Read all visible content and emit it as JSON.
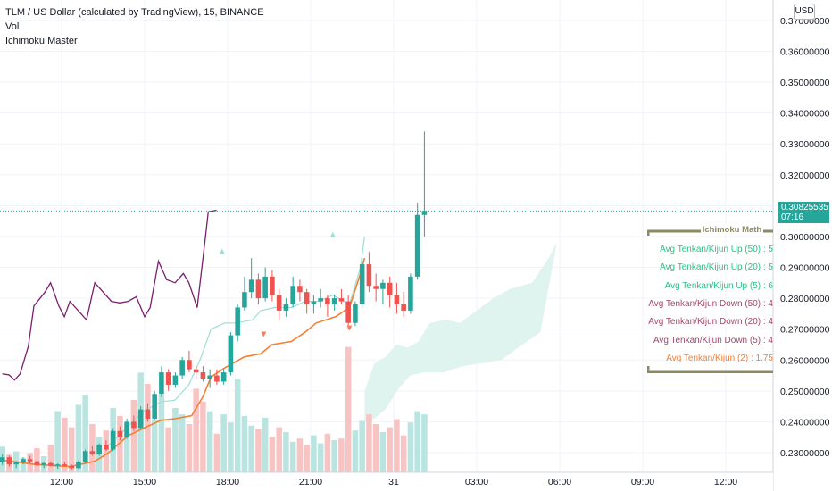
{
  "legend": {
    "title": "TLM / US Dollar (calculated by TradingView), 15, BINANCE",
    "vol": "Vol",
    "indicator": "Ichimoku Master"
  },
  "currency": "USD",
  "last_price": {
    "value": "0.30825535",
    "countdown": "07:16"
  },
  "panel": {
    "title": "Ichimoku Math",
    "rows": [
      {
        "text": "Avg Tenkan/Kijun Up (50) : 5",
        "color": "#26c485"
      },
      {
        "text": "Avg Tenkan/Kijun Up (20) : 5",
        "color": "#26c485"
      },
      {
        "text": "Avg Tenkan/Kijun Up (5) : 6",
        "color": "#26c485"
      },
      {
        "text": "Avg Tenkan/Kijun Down (50) : 4",
        "color": "#9c4a6a"
      },
      {
        "text": "Avg Tenkan/Kijun Down (20) : 4",
        "color": "#9c4a6a"
      },
      {
        "text": "Avg Tenkan/Kijun Down (5) : 4",
        "color": "#9c4a6a"
      },
      {
        "text": "Avg Tenkan/Kijun (2) : 1.75",
        "color": "#f57f32"
      }
    ]
  },
  "colors": {
    "up": "#26a69a",
    "down": "#ef5350",
    "kijun": "#f57f32",
    "tenkan": "#9fded6",
    "oscillator": "#7b1f6e",
    "cloud": "#dff3ef"
  },
  "chart_data": {
    "type": "candlestick",
    "y_ticks": [
      "0.23000000",
      "0.24000000",
      "0.25000000",
      "0.26000000",
      "0.27000000",
      "0.28000000",
      "0.29000000",
      "0.30000000",
      "0.31000000",
      "0.32000000",
      "0.33000000",
      "0.34000000",
      "0.35000000",
      "0.36000000",
      "0.37000000"
    ],
    "ylim": [
      0.222,
      0.374
    ],
    "x_ticks": [
      "12:00",
      "15:00",
      "18:00",
      "21:00",
      "31",
      "03:00",
      "06:00",
      "09:00",
      "12:00"
    ],
    "x_tick_hours": [
      12,
      15,
      18,
      21,
      24,
      27,
      30,
      33,
      36
    ],
    "start_hour": 9.86,
    "bar_hours": 0.25,
    "candles": [
      [
        0.2271,
        0.2295,
        0.226,
        0.2285
      ],
      [
        0.2285,
        0.229,
        0.2255,
        0.2262
      ],
      [
        0.2262,
        0.2272,
        0.225,
        0.2268
      ],
      [
        0.2268,
        0.2285,
        0.2262,
        0.2279
      ],
      [
        0.2279,
        0.229,
        0.2265,
        0.2272
      ],
      [
        0.2272,
        0.2278,
        0.2255,
        0.226
      ],
      [
        0.226,
        0.227,
        0.225,
        0.2266
      ],
      [
        0.2266,
        0.2272,
        0.2255,
        0.2258
      ],
      [
        0.2258,
        0.2265,
        0.2248,
        0.2262
      ],
      [
        0.2262,
        0.227,
        0.2255,
        0.2257
      ],
      [
        0.2257,
        0.2262,
        0.2245,
        0.225
      ],
      [
        0.225,
        0.2275,
        0.2248,
        0.227
      ],
      [
        0.227,
        0.231,
        0.2265,
        0.2305
      ],
      [
        0.2305,
        0.232,
        0.229,
        0.2295
      ],
      [
        0.2295,
        0.233,
        0.229,
        0.2325
      ],
      [
        0.2325,
        0.234,
        0.2305,
        0.231
      ],
      [
        0.231,
        0.238,
        0.2305,
        0.237
      ],
      [
        0.237,
        0.2385,
        0.234,
        0.235
      ],
      [
        0.235,
        0.241,
        0.2345,
        0.24
      ],
      [
        0.24,
        0.242,
        0.237,
        0.238
      ],
      [
        0.238,
        0.245,
        0.2375,
        0.244
      ],
      [
        0.244,
        0.246,
        0.24,
        0.241
      ],
      [
        0.241,
        0.25,
        0.2405,
        0.249
      ],
      [
        0.249,
        0.258,
        0.248,
        0.256
      ],
      [
        0.256,
        0.257,
        0.25,
        0.252
      ],
      [
        0.252,
        0.256,
        0.251,
        0.255
      ],
      [
        0.255,
        0.261,
        0.254,
        0.26
      ],
      [
        0.26,
        0.263,
        0.256,
        0.257
      ],
      [
        0.257,
        0.258,
        0.254,
        0.256
      ],
      [
        0.256,
        0.258,
        0.253,
        0.254
      ],
      [
        0.254,
        0.257,
        0.251,
        0.255
      ],
      [
        0.255,
        0.257,
        0.252,
        0.253
      ],
      [
        0.253,
        0.257,
        0.252,
        0.256
      ],
      [
        0.256,
        0.269,
        0.255,
        0.268
      ],
      [
        0.268,
        0.278,
        0.266,
        0.277
      ],
      [
        0.277,
        0.287,
        0.276,
        0.282
      ],
      [
        0.282,
        0.293,
        0.28,
        0.286
      ],
      [
        0.286,
        0.288,
        0.278,
        0.28
      ],
      [
        0.28,
        0.29,
        0.279,
        0.287
      ],
      [
        0.287,
        0.289,
        0.279,
        0.281
      ],
      [
        0.281,
        0.283,
        0.273,
        0.276
      ],
      [
        0.276,
        0.28,
        0.274,
        0.278
      ],
      [
        0.278,
        0.287,
        0.277,
        0.284
      ],
      [
        0.284,
        0.286,
        0.279,
        0.282
      ],
      [
        0.282,
        0.283,
        0.275,
        0.278
      ],
      [
        0.278,
        0.281,
        0.275,
        0.279
      ],
      [
        0.279,
        0.283,
        0.277,
        0.28
      ],
      [
        0.28,
        0.281,
        0.274,
        0.278
      ],
      [
        0.278,
        0.281,
        0.276,
        0.28
      ],
      [
        0.28,
        0.283,
        0.278,
        0.279
      ],
      [
        0.279,
        0.281,
        0.27,
        0.272
      ],
      [
        0.272,
        0.279,
        0.271,
        0.278
      ],
      [
        0.278,
        0.293,
        0.277,
        0.291
      ],
      [
        0.291,
        0.295,
        0.282,
        0.284
      ],
      [
        0.284,
        0.288,
        0.279,
        0.283
      ],
      [
        0.283,
        0.286,
        0.278,
        0.285
      ],
      [
        0.285,
        0.287,
        0.277,
        0.281
      ],
      [
        0.281,
        0.285,
        0.275,
        0.278
      ],
      [
        0.278,
        0.282,
        0.274,
        0.276
      ],
      [
        0.276,
        0.288,
        0.275,
        0.287
      ],
      [
        0.287,
        0.311,
        0.286,
        0.307
      ],
      [
        0.307,
        0.334,
        0.3,
        0.3083
      ]
    ],
    "volume_pct": [
      0.16,
      0.11,
      0.13,
      0.09,
      0.12,
      0.15,
      0.1,
      0.17,
      0.38,
      0.34,
      0.28,
      0.42,
      0.48,
      0.3,
      0.22,
      0.26,
      0.4,
      0.35,
      0.3,
      0.45,
      0.62,
      0.55,
      0.33,
      0.48,
      0.28,
      0.4,
      0.36,
      0.3,
      0.52,
      0.44,
      0.38,
      0.24,
      0.36,
      0.31,
      0.58,
      0.35,
      0.29,
      0.27,
      0.34,
      0.22,
      0.28,
      0.25,
      0.19,
      0.21,
      0.17,
      0.23,
      0.18,
      0.24,
      0.2,
      0.21,
      0.78,
      0.26,
      0.32,
      0.36,
      0.3,
      0.25,
      0.28,
      0.33,
      0.23,
      0.31,
      0.38,
      0.36
    ],
    "kijun": [
      [
        9.9,
        0.2275
      ],
      [
        11.0,
        0.2262
      ],
      [
        12.3,
        0.2255
      ],
      [
        13.2,
        0.2272
      ],
      [
        13.7,
        0.23
      ],
      [
        14.4,
        0.2355
      ],
      [
        15.1,
        0.2385
      ],
      [
        15.6,
        0.2405
      ],
      [
        16.1,
        0.241
      ],
      [
        16.7,
        0.242
      ],
      [
        17.1,
        0.248
      ],
      [
        17.4,
        0.2545
      ],
      [
        17.9,
        0.2575
      ],
      [
        18.6,
        0.261
      ],
      [
        19.2,
        0.262
      ],
      [
        19.6,
        0.265
      ],
      [
        20.3,
        0.266
      ],
      [
        20.8,
        0.269
      ],
      [
        21.2,
        0.272
      ],
      [
        21.9,
        0.274
      ],
      [
        22.4,
        0.277
      ],
      [
        22.8,
        0.288
      ],
      [
        22.95,
        0.293
      ]
    ],
    "tenkan": [
      [
        13.6,
        0.2315
      ],
      [
        14.4,
        0.2385
      ],
      [
        14.9,
        0.243
      ],
      [
        15.6,
        0.2465
      ],
      [
        16.1,
        0.247
      ],
      [
        16.6,
        0.252
      ],
      [
        17.0,
        0.26
      ],
      [
        17.4,
        0.27
      ],
      [
        17.9,
        0.272
      ],
      [
        18.3,
        0.272
      ],
      [
        18.9,
        0.273
      ],
      [
        19.2,
        0.276
      ],
      [
        19.7,
        0.277
      ],
      [
        20.3,
        0.277
      ],
      [
        20.8,
        0.279
      ],
      [
        21.3,
        0.279
      ],
      [
        21.8,
        0.281
      ],
      [
        22.4,
        0.278
      ],
      [
        22.8,
        0.29
      ],
      [
        22.95,
        0.3
      ]
    ],
    "oscillator": [
      [
        9.86,
        0.2555
      ],
      [
        10.1,
        0.2552
      ],
      [
        10.3,
        0.2535
      ],
      [
        10.5,
        0.2555
      ],
      [
        10.8,
        0.2645
      ],
      [
        11.0,
        0.2775
      ],
      [
        11.4,
        0.282
      ],
      [
        11.6,
        0.285
      ],
      [
        11.9,
        0.2775
      ],
      [
        12.1,
        0.274
      ],
      [
        12.3,
        0.279
      ],
      [
        12.6,
        0.276
      ],
      [
        12.9,
        0.273
      ],
      [
        13.2,
        0.285
      ],
      [
        13.5,
        0.282
      ],
      [
        13.8,
        0.279
      ],
      [
        14.1,
        0.2785
      ],
      [
        14.4,
        0.279
      ],
      [
        14.7,
        0.2805
      ],
      [
        15.0,
        0.274
      ],
      [
        15.2,
        0.277
      ],
      [
        15.5,
        0.292
      ],
      [
        15.8,
        0.286
      ],
      [
        16.1,
        0.285
      ],
      [
        16.4,
        0.288
      ],
      [
        16.6,
        0.285
      ],
      [
        16.9,
        0.277
      ],
      [
        17.2,
        0.3
      ],
      [
        17.3,
        0.308
      ],
      [
        17.6,
        0.3085
      ]
    ],
    "cloud_top": [
      [
        22.95,
        0.25
      ],
      [
        23.3,
        0.259
      ],
      [
        23.7,
        0.261
      ],
      [
        24.1,
        0.265
      ],
      [
        24.5,
        0.264
      ],
      [
        24.9,
        0.266
      ],
      [
        25.3,
        0.272
      ],
      [
        25.9,
        0.273
      ],
      [
        26.4,
        0.272
      ],
      [
        27.0,
        0.276
      ],
      [
        27.6,
        0.28
      ],
      [
        28.2,
        0.283
      ],
      [
        29.0,
        0.285
      ],
      [
        29.6,
        0.293
      ],
      [
        29.9,
        0.298
      ]
    ],
    "cloud_bottom": [
      [
        22.95,
        0.24
      ],
      [
        23.3,
        0.241
      ],
      [
        23.7,
        0.244
      ],
      [
        24.2,
        0.251
      ],
      [
        24.6,
        0.255
      ],
      [
        25.1,
        0.256
      ],
      [
        25.8,
        0.256
      ],
      [
        26.5,
        0.258
      ],
      [
        27.2,
        0.259
      ],
      [
        27.9,
        0.26
      ],
      [
        28.5,
        0.264
      ],
      [
        29.3,
        0.269
      ],
      [
        29.9,
        0.298
      ]
    ],
    "signal_up": [
      [
        17.8,
        0.2952
      ],
      [
        21.8,
        0.3006
      ]
    ],
    "signal_down": [
      [
        19.3,
        0.2683
      ],
      [
        22.4,
        0.2703
      ]
    ]
  }
}
